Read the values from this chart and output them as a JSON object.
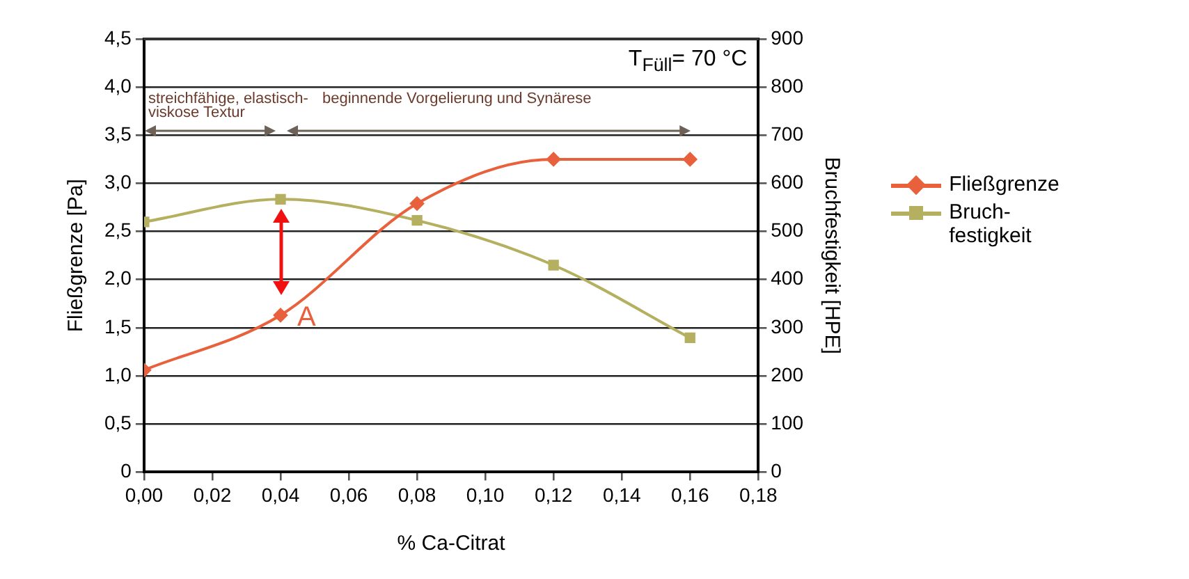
{
  "chart_data": {
    "type": "line",
    "xlabel": "% Ca-Citrat",
    "ylabel": "Fließgrenze [Pa]",
    "y2label": "Bruchfestigkeit [HPE]",
    "x": [
      0,
      0.04,
      0.08,
      0.12,
      0.16
    ],
    "series": [
      {
        "name": "Fließgrenze",
        "color": "#e8603c",
        "values": [
          1.06,
          1.63,
          2.79,
          3.25,
          3.25
        ],
        "marker": "diamond"
      },
      {
        "name": "Bruch-festigkeit",
        "color": "#b5b060",
        "values": [
          520,
          567,
          523,
          430,
          279
        ],
        "axis": "y2",
        "marker": "square"
      }
    ],
    "xlim": [
      0,
      0.18
    ],
    "xticks": [
      {
        "value": 0,
        "label": "0,00"
      },
      {
        "value": 0.02,
        "label": "0,02"
      },
      {
        "value": 0.04,
        "label": "0,04"
      },
      {
        "value": 0.06,
        "label": "0,06"
      },
      {
        "value": 0.08,
        "label": "0,08"
      },
      {
        "value": 0.1,
        "label": "0,10"
      },
      {
        "value": 0.12,
        "label": "0,12"
      },
      {
        "value": 0.14,
        "label": "0,14"
      },
      {
        "value": 0.16,
        "label": "0,16"
      },
      {
        "value": 0.18,
        "label": "0,18"
      }
    ],
    "ylim": [
      0,
      4.5
    ],
    "yticks": [
      0,
      {
        "value": 0.5,
        "label": "0,5"
      },
      {
        "value": 1,
        "label": "1,0"
      },
      {
        "value": 1.5,
        "label": "1,5"
      },
      {
        "value": 2,
        "label": "2,0"
      },
      {
        "value": 2.5,
        "label": "2,5"
      },
      {
        "value": 3,
        "label": "3,0"
      },
      {
        "value": 3.5,
        "label": "3,5"
      },
      {
        "value": 4,
        "label": "4,0"
      },
      {
        "value": 4.5,
        "label": "4,5"
      }
    ],
    "y2lim": [
      0,
      900
    ],
    "y2ticks": [
      0,
      100,
      200,
      300,
      400,
      500,
      600,
      700,
      800,
      900
    ],
    "annotations": [
      "T$_{Füll}$= 70 °C",
      "streichfähige, elastisch-viskose Textur",
      "beginnende Vorgelierung und Synärese",
      {
        "text": "A",
        "x": 0.04,
        "y": 1.63
      }
    ],
    "grid": "y",
    "legend": "right",
    "line_style": "solid"
  }
}
